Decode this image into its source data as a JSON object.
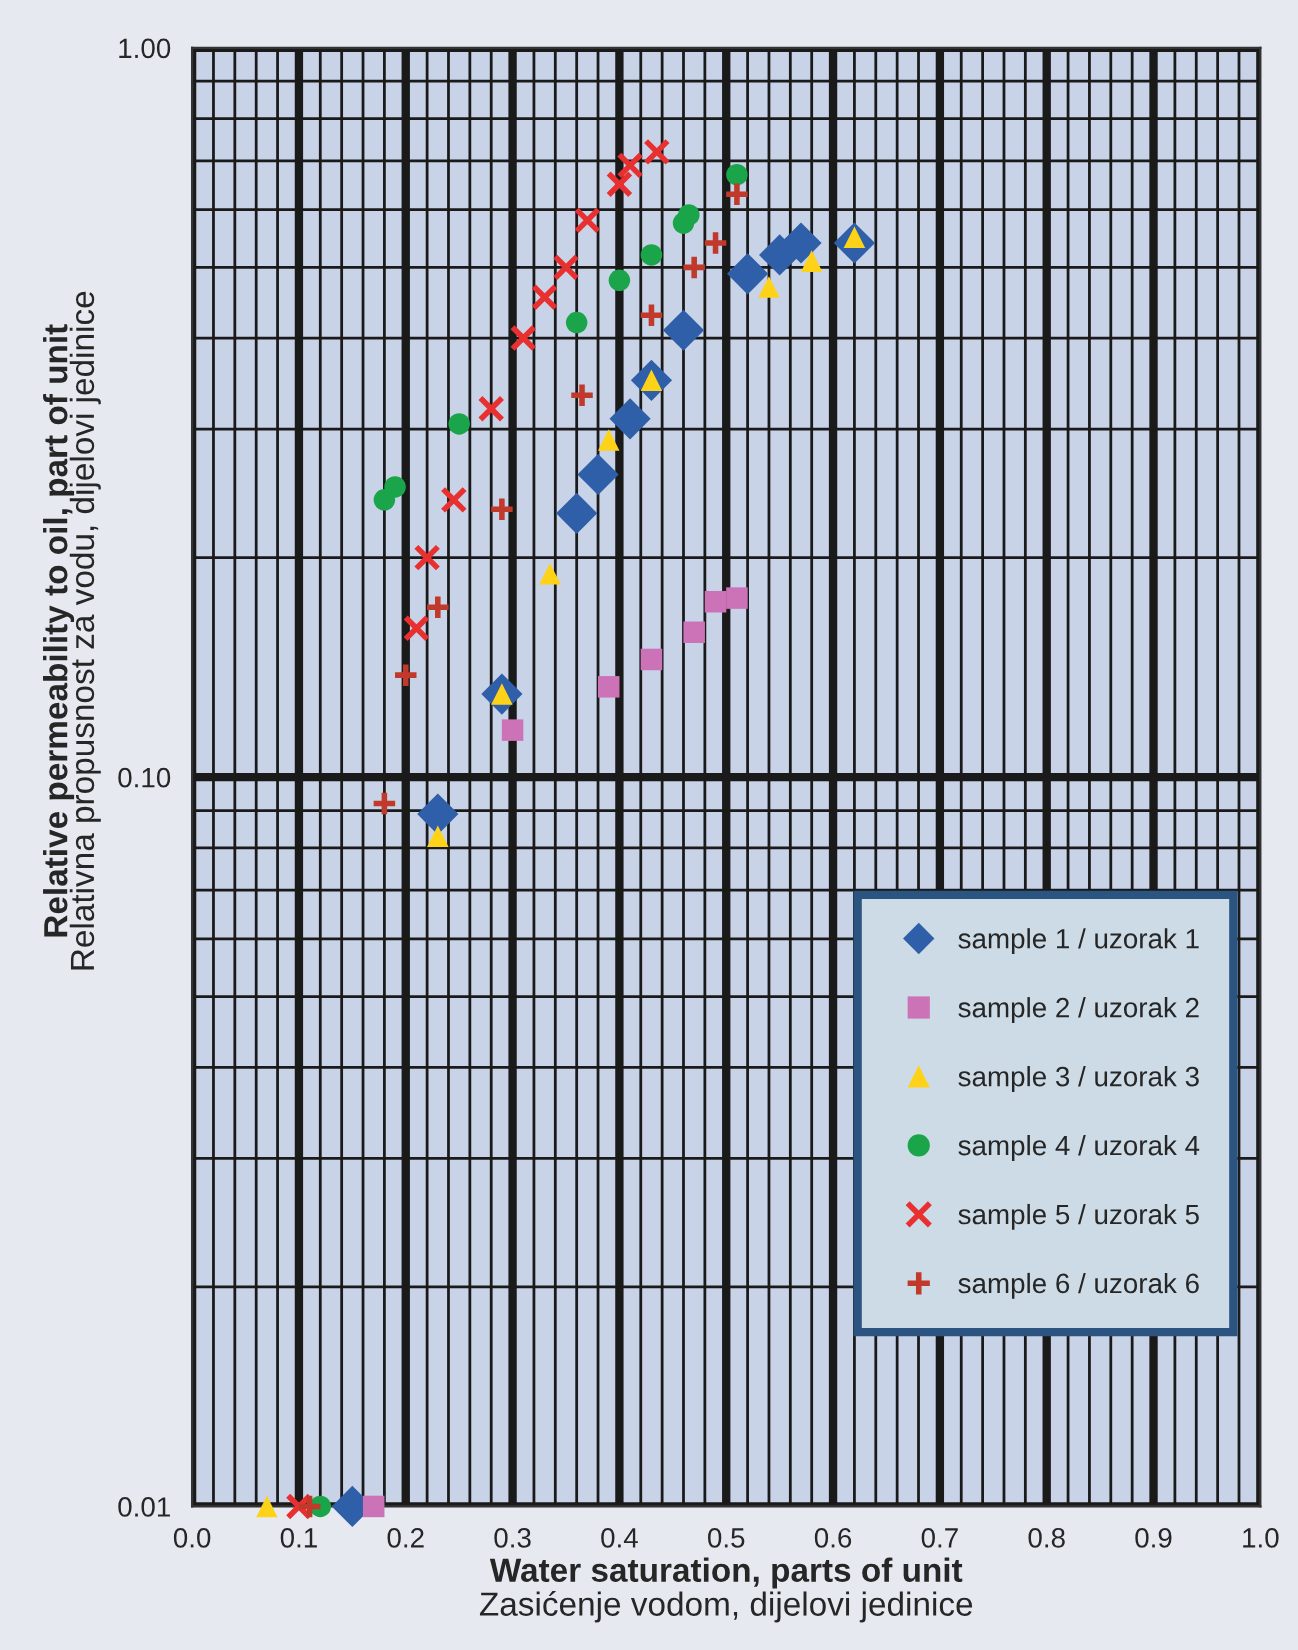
{
  "chart_data": {
    "type": "scatter",
    "xlabel": "Water saturation, parts of unit\nZasićenje vodom, dijelovi jedinice",
    "ylabel": "Relative permeability to oil, part of unit\nRelativna propusnost za vodu, dijelovi jedinice",
    "log": "y",
    "grid": true,
    "legend": "bottom right",
    "xlim": [
      0,
      1
    ],
    "ylim": [
      0.01,
      1
    ],
    "xticks": [
      {
        "value": 0,
        "label": "0.0"
      },
      {
        "value": 0.1,
        "label": "0.1"
      },
      {
        "value": 0.2,
        "label": "0.2"
      },
      {
        "value": 0.3,
        "label": "0.3"
      },
      {
        "value": 0.4,
        "label": "0.4"
      },
      {
        "value": 0.5,
        "label": "0.5"
      },
      {
        "value": 0.6,
        "label": "0.6"
      },
      {
        "value": 0.7,
        "label": "0.7"
      },
      {
        "value": 0.8,
        "label": "0.8"
      },
      {
        "value": 0.9,
        "label": "0.9"
      },
      {
        "value": 1,
        "label": "1.0"
      }
    ],
    "yticks": [
      {
        "value": 0.01,
        "label": "0.01"
      },
      {
        "value": 0.1,
        "label": "0.10"
      },
      {
        "value": 1,
        "label": "1.00"
      }
    ],
    "series": [
      {
        "name": "sample 1 / uzorak 1",
        "color": "#2e5fa8",
        "marker": "diamond",
        "x": [
          0.15,
          0.23,
          0.29,
          0.36,
          0.38,
          0.41,
          0.43,
          0.46,
          0.52,
          0.55,
          0.57,
          0.62
        ],
        "values": [
          0.01,
          0.089,
          0.13,
          0.23,
          0.26,
          0.31,
          0.35,
          0.41,
          0.49,
          0.52,
          0.54,
          0.54
        ]
      },
      {
        "name": "sample 2 / uzorak 2",
        "color": "#cc73b8",
        "marker": "square",
        "x": [
          0.17,
          0.3,
          0.39,
          0.43,
          0.47,
          0.49,
          0.51
        ],
        "values": [
          0.01,
          0.116,
          0.133,
          0.145,
          0.158,
          0.174,
          0.176
        ]
      },
      {
        "name": "sample 3 / uzorak 3",
        "color": "#ffd21a",
        "marker": "triangle",
        "x": [
          0.07,
          0.23,
          0.29,
          0.335,
          0.39,
          0.43,
          0.54,
          0.58,
          0.62
        ],
        "values": [
          0.01,
          0.083,
          0.13,
          0.19,
          0.29,
          0.35,
          0.47,
          0.51,
          0.55
        ]
      },
      {
        "name": "sample 4 / uzorak 4",
        "color": "#1aa54a",
        "marker": "circle",
        "x": [
          0.12,
          0.18,
          0.19,
          0.25,
          0.36,
          0.4,
          0.43,
          0.46,
          0.465,
          0.51
        ],
        "values": [
          0.01,
          0.24,
          0.25,
          0.305,
          0.42,
          0.48,
          0.52,
          0.575,
          0.59,
          0.67
        ]
      },
      {
        "name": "sample 5 / uzorak 5",
        "color": "#e83030",
        "marker": "cross",
        "x": [
          0.1,
          0.21,
          0.22,
          0.245,
          0.28,
          0.31,
          0.33,
          0.35,
          0.37,
          0.4,
          0.41,
          0.435
        ],
        "values": [
          0.01,
          0.16,
          0.2,
          0.24,
          0.32,
          0.4,
          0.455,
          0.5,
          0.58,
          0.65,
          0.69,
          0.72
        ]
      },
      {
        "name": "sample 6 / uzorak 6",
        "color": "#c0392b",
        "marker": "plus",
        "x": [
          0.11,
          0.18,
          0.2,
          0.23,
          0.29,
          0.365,
          0.43,
          0.47,
          0.49,
          0.51
        ],
        "values": [
          0.01,
          0.092,
          0.138,
          0.171,
          0.233,
          0.334,
          0.43,
          0.5,
          0.54,
          0.63
        ]
      }
    ]
  }
}
